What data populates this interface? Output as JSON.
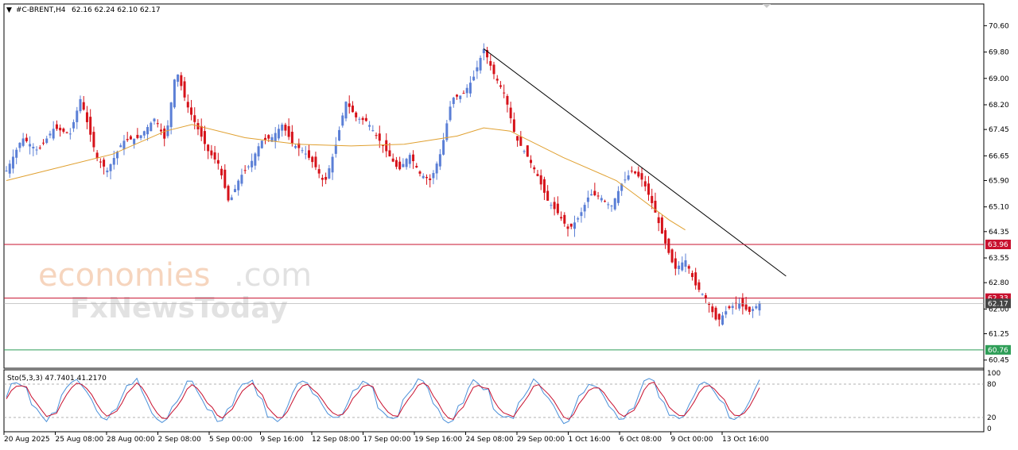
{
  "header": {
    "collapse_glyph": "▼",
    "symbol": "#C-BRENT,H4",
    "ohlc": "62.16 62.24 62.10 62.17"
  },
  "watermark": {
    "brand1": "economies",
    "brand1_suffix": ".com",
    "brand2": "FxNewsToday"
  },
  "indicator": {
    "label": "Sto(5,3,3) 47.7401 41.2170",
    "axis_ticks": [
      "100",
      "80",
      "20",
      "0"
    ]
  },
  "chart_data": {
    "type": "candlestick",
    "symbol": "#C-BRENT",
    "timeframe": "H4",
    "ylim": [
      60.25,
      70.85
    ],
    "y_ticks": [
      "70.60",
      "69.80",
      "69.00",
      "68.20",
      "67.45",
      "66.65",
      "65.90",
      "65.10",
      "64.35",
      "63.55",
      "62.80",
      "62.00",
      "61.25",
      "60.45"
    ],
    "x_ticks": [
      "20 Aug 2025",
      "25 Aug 08:00",
      "28 Aug 00:00",
      "2 Sep 08:00",
      "5 Sep 00:00",
      "9 Sep 16:00",
      "12 Sep 08:00",
      "17 Sep 00:00",
      "19 Sep 16:00",
      "24 Sep 08:00",
      "29 Sep 00:00",
      "1 Oct 16:00",
      "6 Oct 08:00",
      "9 Oct 00:00",
      "13 Oct 16:00"
    ],
    "colors": {
      "up": "#5b7fd6",
      "down": "#d6121a",
      "ma": "#e0a030",
      "trendline": "#000000",
      "level_red": "#c8102e",
      "level_green": "#2e9e57",
      "stoch_main": "#4a90d9",
      "stoch_signal": "#c8102e"
    },
    "price_path": [
      [
        0,
        66.2
      ],
      [
        3,
        67.2
      ],
      [
        6,
        66.8
      ],
      [
        9,
        67.5
      ],
      [
        12,
        67.3
      ],
      [
        14,
        68.4
      ],
      [
        17,
        66.6
      ],
      [
        19,
        66.2
      ],
      [
        22,
        67.1
      ],
      [
        25,
        67.2
      ],
      [
        28,
        67.8
      ],
      [
        30,
        67.1
      ],
      [
        32,
        69.3
      ],
      [
        34,
        68.2
      ],
      [
        36,
        67.5
      ],
      [
        38,
        66.8
      ],
      [
        40,
        66.4
      ],
      [
        42,
        65.2
      ],
      [
        44,
        66.0
      ],
      [
        46,
        66.4
      ],
      [
        48,
        67.1
      ],
      [
        50,
        67.2
      ],
      [
        52,
        67.6
      ],
      [
        54,
        67.0
      ],
      [
        56,
        66.8
      ],
      [
        58,
        66.4
      ],
      [
        60,
        65.8
      ],
      [
        62,
        66.9
      ],
      [
        64,
        68.3
      ],
      [
        66,
        67.8
      ],
      [
        68,
        67.7
      ],
      [
        70,
        67.2
      ],
      [
        72,
        66.7
      ],
      [
        74,
        66.2
      ],
      [
        76,
        66.7
      ],
      [
        78,
        66.1
      ],
      [
        80,
        65.9
      ],
      [
        82,
        66.8
      ],
      [
        84,
        68.4
      ],
      [
        86,
        68.5
      ],
      [
        88,
        69.0
      ],
      [
        90,
        69.9
      ],
      [
        92,
        69.1
      ],
      [
        94,
        68.5
      ],
      [
        96,
        67.2
      ],
      [
        98,
        66.7
      ],
      [
        100,
        66.1
      ],
      [
        102,
        65.3
      ],
      [
        104,
        64.9
      ],
      [
        106,
        64.4
      ],
      [
        108,
        64.8
      ],
      [
        110,
        65.5
      ],
      [
        112,
        65.4
      ],
      [
        114,
        65.1
      ],
      [
        116,
        65.8
      ],
      [
        118,
        66.2
      ],
      [
        120,
        65.9
      ],
      [
        122,
        65.1
      ],
      [
        124,
        64.1
      ],
      [
        126,
        63.2
      ],
      [
        128,
        63.5
      ],
      [
        130,
        62.7
      ],
      [
        132,
        62.3
      ],
      [
        134,
        61.6
      ],
      [
        136,
        62.0
      ],
      [
        138,
        62.2
      ],
      [
        140,
        61.9
      ],
      [
        142,
        62.17
      ]
    ],
    "moving_average": [
      [
        0,
        65.9
      ],
      [
        10,
        66.3
      ],
      [
        20,
        66.7
      ],
      [
        30,
        67.4
      ],
      [
        35,
        67.6
      ],
      [
        45,
        67.2
      ],
      [
        55,
        67.0
      ],
      [
        65,
        66.95
      ],
      [
        75,
        67.0
      ],
      [
        85,
        67.25
      ],
      [
        90,
        67.5
      ],
      [
        95,
        67.4
      ],
      [
        105,
        66.6
      ],
      [
        115,
        65.9
      ],
      [
        120,
        65.3
      ],
      [
        125,
        64.7
      ],
      [
        128,
        64.4
      ]
    ],
    "trendline": {
      "from": [
        90,
        69.9
      ],
      "to": [
        147,
        63.0
      ]
    },
    "levels": [
      {
        "price": 63.96,
        "label": "63.96",
        "color": "red"
      },
      {
        "price": 62.33,
        "label": "62.33",
        "color": "red"
      },
      {
        "price": 62.17,
        "label": "62.17",
        "color": "gray"
      },
      {
        "price": 60.76,
        "label": "60.76",
        "color": "green"
      }
    ],
    "stochastic": {
      "name": "Sto(5,3,3)",
      "main": 47.7401,
      "signal": 41.217,
      "levels": [
        80,
        20
      ],
      "ylim": [
        0,
        100
      ]
    }
  }
}
